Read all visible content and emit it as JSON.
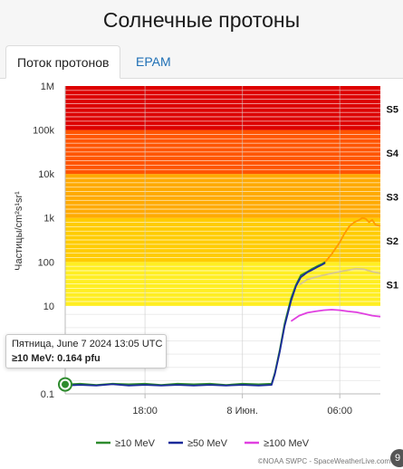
{
  "page": {
    "title": "Солнечные протоны",
    "tabs": [
      {
        "label": "Поток протонов",
        "active": true
      },
      {
        "label": "EPAM",
        "active": false
      }
    ],
    "tooltip": {
      "datetime": "Пятница, June 7 2024 13:05 UTC",
      "series_label": "≥10 MeV:",
      "value": "0.164 pfu"
    },
    "credit": "©NOAA SWPC - SpaceWeatherLive.com",
    "corner_badge": "9"
  },
  "chart_data": {
    "type": "line",
    "ylabel": "Частицы/cm²s¹sr¹",
    "yscale": "log",
    "ylim": [
      0.1,
      1000000
    ],
    "y_ticks": [
      {
        "value": 1000000,
        "label": "1M"
      },
      {
        "value": 100000,
        "label": "100k"
      },
      {
        "value": 10000,
        "label": "10k"
      },
      {
        "value": 1000,
        "label": "1k"
      },
      {
        "value": 100,
        "label": "100"
      },
      {
        "value": 10,
        "label": "10"
      },
      {
        "value": 0.1,
        "label": "0.1"
      }
    ],
    "xlim_hours": [
      13.083,
      32.5
    ],
    "x_ticks": [
      {
        "hour": 18,
        "label": "18:00"
      },
      {
        "hour": 24,
        "label": "8 Июн."
      },
      {
        "hour": 30,
        "label": "06:00"
      }
    ],
    "storm_levels": [
      {
        "label": "S1",
        "min": 10,
        "max": 100,
        "color": "#ffee22"
      },
      {
        "label": "S2",
        "min": 100,
        "max": 1000,
        "color": "#ffcc00"
      },
      {
        "label": "S3",
        "min": 1000,
        "max": 10000,
        "color": "#ffaa00"
      },
      {
        "label": "S4",
        "min": 10000,
        "max": 100000,
        "color": "#ff5500"
      },
      {
        "label": "S5",
        "min": 100000,
        "max": 1000000,
        "color": "#dd0000"
      }
    ],
    "series": [
      {
        "name": "≥10 MeV",
        "color": "#2e8b2e",
        "points": [
          [
            13.08,
            0.164
          ],
          [
            14.0,
            0.17
          ],
          [
            15.0,
            0.16
          ],
          [
            16.0,
            0.17
          ],
          [
            17.0,
            0.165
          ],
          [
            18.0,
            0.17
          ],
          [
            19.0,
            0.16
          ],
          [
            20.0,
            0.17
          ],
          [
            21.0,
            0.165
          ],
          [
            22.0,
            0.17
          ],
          [
            23.0,
            0.16
          ],
          [
            24.0,
            0.17
          ],
          [
            25.0,
            0.165
          ],
          [
            25.8,
            0.17
          ],
          [
            26.0,
            0.3
          ],
          [
            26.3,
            1.0
          ],
          [
            26.6,
            4.0
          ],
          [
            27.0,
            15.0
          ],
          [
            27.3,
            30.0
          ],
          [
            27.6,
            50.0
          ],
          [
            28.0,
            60.0
          ],
          [
            28.3,
            70.0
          ],
          [
            28.6,
            80.0
          ],
          [
            28.9,
            90.0
          ],
          [
            29.1,
            100.0
          ]
        ]
      },
      {
        "name": "≥50 MeV",
        "color": "#1a2a9a",
        "points": [
          [
            13.08,
            0.155
          ],
          [
            14.0,
            0.16
          ],
          [
            15.0,
            0.155
          ],
          [
            16.0,
            0.165
          ],
          [
            17.0,
            0.155
          ],
          [
            18.0,
            0.16
          ],
          [
            19.0,
            0.155
          ],
          [
            20.0,
            0.16
          ],
          [
            21.0,
            0.155
          ],
          [
            22.0,
            0.16
          ],
          [
            23.0,
            0.155
          ],
          [
            24.0,
            0.16
          ],
          [
            25.0,
            0.155
          ],
          [
            25.8,
            0.16
          ],
          [
            26.0,
            0.28
          ],
          [
            26.3,
            0.9
          ],
          [
            26.6,
            3.5
          ],
          [
            27.0,
            13.0
          ],
          [
            27.3,
            28.0
          ],
          [
            27.6,
            45.0
          ],
          [
            28.0,
            58.0
          ],
          [
            28.3,
            66.0
          ],
          [
            28.6,
            76.0
          ],
          [
            28.9,
            86.0
          ],
          [
            29.1,
            95.0
          ]
        ]
      },
      {
        "name": "≥100 MeV",
        "color": "#e040e0",
        "points": [
          [
            27.0,
            4.5
          ],
          [
            27.5,
            6.0
          ],
          [
            28.0,
            7.0
          ],
          [
            28.5,
            7.5
          ],
          [
            29.0,
            8.0
          ],
          [
            29.5,
            8.2
          ],
          [
            30.0,
            8.0
          ],
          [
            30.5,
            7.5
          ],
          [
            31.0,
            7.2
          ],
          [
            31.5,
            6.6
          ],
          [
            32.0,
            6.0
          ],
          [
            32.5,
            5.7
          ]
        ]
      },
      {
        "name": "≥10 MeV (orange)",
        "color": "#ff9900",
        "points": [
          [
            29.1,
            100.0
          ],
          [
            29.5,
            150.0
          ],
          [
            30.0,
            280.0
          ],
          [
            30.3,
            450.0
          ],
          [
            30.6,
            650.0
          ],
          [
            30.9,
            800.0
          ],
          [
            31.2,
            900.0
          ],
          [
            31.4,
            1000.0
          ],
          [
            31.6,
            950.0
          ],
          [
            31.8,
            800.0
          ],
          [
            32.0,
            900.0
          ],
          [
            32.2,
            700.0
          ],
          [
            32.5,
            650.0
          ]
        ]
      },
      {
        "name": "≥50 MeV (beige)",
        "color": "#d8c890",
        "points": [
          [
            27.5,
            30.0
          ],
          [
            28.0,
            40.0
          ],
          [
            28.5,
            45.0
          ],
          [
            29.0,
            50.0
          ],
          [
            29.5,
            55.0
          ],
          [
            30.0,
            60.0
          ],
          [
            30.5,
            65.0
          ],
          [
            31.0,
            70.0
          ],
          [
            31.5,
            68.0
          ],
          [
            32.0,
            60.0
          ],
          [
            32.5,
            55.0
          ]
        ]
      }
    ],
    "legend": {
      "placement": "bottom",
      "entries": [
        {
          "label": "≥10 MeV",
          "color": "#2e8b2e"
        },
        {
          "label": "≥50 MeV",
          "color": "#1a2a9a"
        },
        {
          "label": "≥100 MeV",
          "color": "#e040e0"
        }
      ]
    },
    "marker": {
      "hour": 13.083,
      "value": 0.164,
      "color": "#2e8b2e"
    }
  }
}
